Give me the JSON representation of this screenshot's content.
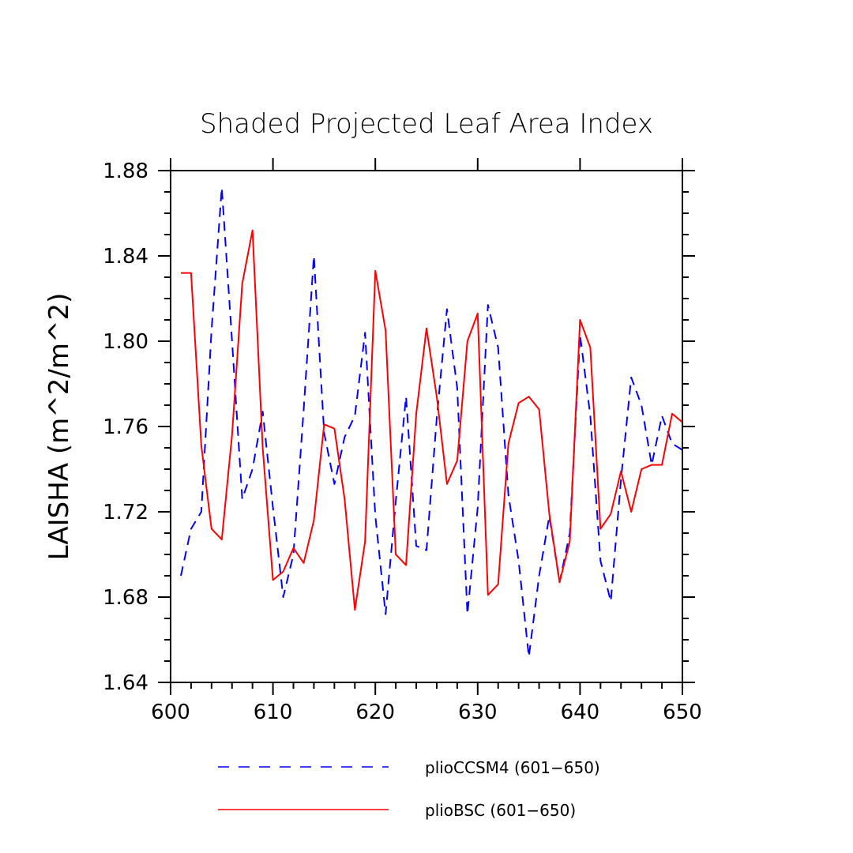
{
  "chart_data": {
    "type": "line",
    "title": "Shaded Projected Leaf Area Index",
    "xlabel": "",
    "ylabel": "LAISHA  (m^2/m^2)",
    "xlim": [
      600,
      650
    ],
    "ylim": [
      1.64,
      1.88
    ],
    "x_ticks": [
      "600",
      "610",
      "620",
      "630",
      "640",
      "650"
    ],
    "y_ticks": [
      "1.64",
      "1.68",
      "1.72",
      "1.76",
      "1.80",
      "1.84",
      "1.88"
    ],
    "x": [
      601,
      602,
      603,
      604,
      605,
      606,
      607,
      608,
      609,
      610,
      611,
      612,
      613,
      614,
      615,
      616,
      617,
      618,
      619,
      620,
      621,
      622,
      623,
      624,
      625,
      626,
      627,
      628,
      629,
      630,
      631,
      632,
      633,
      634,
      635,
      636,
      637,
      638,
      639,
      640,
      641,
      642,
      643,
      644,
      645,
      646,
      647,
      648,
      649,
      650
    ],
    "series": [
      {
        "name": "plioCCSM4 (601-650)",
        "color": "#0000ff",
        "dash": "dashed",
        "values": [
          1.69,
          1.712,
          1.72,
          1.805,
          1.872,
          1.8,
          1.726,
          1.74,
          1.767,
          1.722,
          1.68,
          1.7,
          1.768,
          1.84,
          1.757,
          1.733,
          1.755,
          1.765,
          1.804,
          1.718,
          1.672,
          1.725,
          1.774,
          1.704,
          1.702,
          1.764,
          1.815,
          1.778,
          1.672,
          1.722,
          1.817,
          1.797,
          1.728,
          1.697,
          1.652,
          1.69,
          1.718,
          1.687,
          1.71,
          1.803,
          1.765,
          1.697,
          1.678,
          1.735,
          1.783,
          1.77,
          1.742,
          1.765,
          1.752,
          1.749
        ]
      },
      {
        "name": "plioBSC (601-650)",
        "color": "#ff0000",
        "dash": "solid",
        "values": [
          1.832,
          1.832,
          1.751,
          1.712,
          1.707,
          1.756,
          1.827,
          1.852,
          1.75,
          1.688,
          1.692,
          1.703,
          1.696,
          1.716,
          1.761,
          1.759,
          1.726,
          1.674,
          1.706,
          1.833,
          1.805,
          1.7,
          1.695,
          1.766,
          1.806,
          1.774,
          1.733,
          1.744,
          1.8,
          1.813,
          1.681,
          1.686,
          1.752,
          1.771,
          1.774,
          1.768,
          1.719,
          1.687,
          1.706,
          1.81,
          1.797,
          1.712,
          1.719,
          1.739,
          1.72,
          1.74,
          1.742,
          1.742,
          1.766,
          1.762
        ]
      }
    ],
    "legend": [
      {
        "label": "plioCCSM4 (601−650)"
      },
      {
        "label": "plioBSC (601−650)"
      }
    ],
    "legend_position": "bottom"
  }
}
